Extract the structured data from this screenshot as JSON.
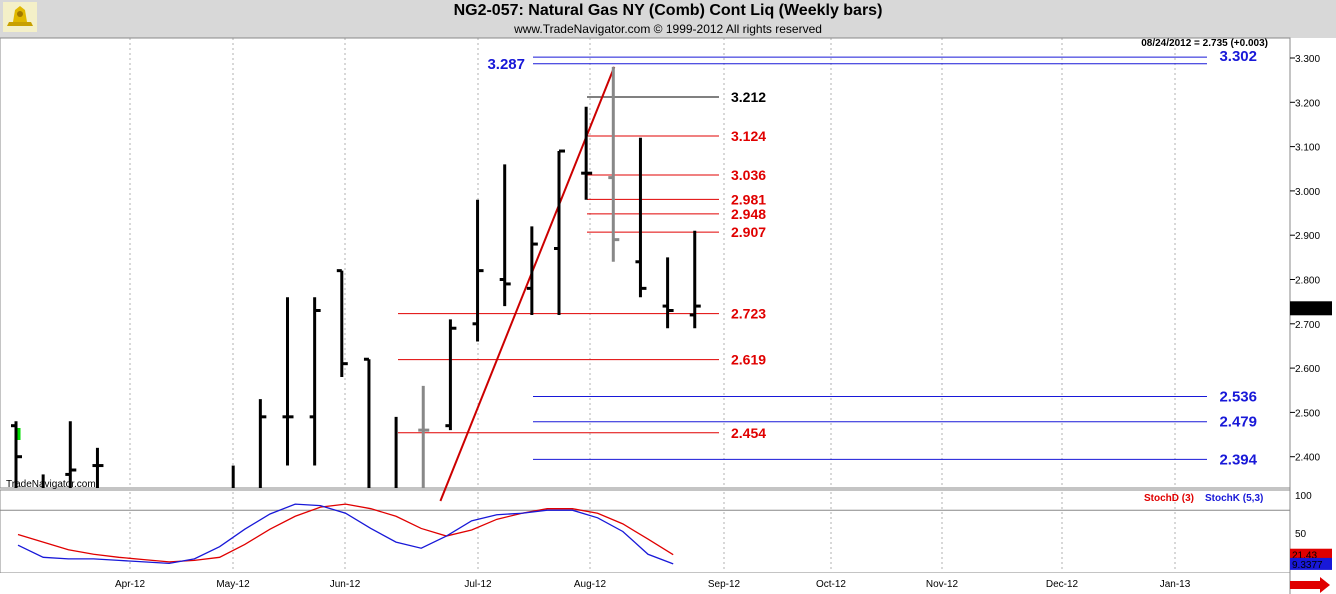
{
  "header": {
    "title": "NG2-057:  Natural Gas NY (Comb) Cont Liq  (Weekly bars)",
    "copyright": "www.TradeNavigator.com © 1999-2012 All rights reserved",
    "last_quote": "08/24/2012 = 2.735 (+0.003)",
    "watermark": "TradeNavigator.com",
    "logo_icon": "trade-navigator-logo-icon"
  },
  "chart_data": [
    {
      "type": "ohlc",
      "title": "NG2-057:  Natural Gas NY (Comb) Cont Liq  (Weekly bars)",
      "x_ticks": [
        "Apr-12",
        "May-12",
        "Jun-12",
        "Jul-12",
        "Aug-12",
        "Sep-12",
        "Oct-12",
        "Nov-12",
        "Dec-12",
        "Jan-13"
      ],
      "ylim": [
        2.3,
        3.32
      ],
      "y_ticks": [
        "3.300",
        "3.200",
        "3.100",
        "3.000",
        "2.900",
        "2.800",
        "2.700",
        "2.600",
        "2.500",
        "2.400"
      ],
      "last_price": "2.735",
      "bars": [
        {
          "week": 1,
          "open": 2.47,
          "high": 2.48,
          "low": 2.3,
          "close": 2.4,
          "color": "#000000"
        },
        {
          "week": 2,
          "open": 2.3,
          "high": 2.36,
          "low": 2.3,
          "close": 2.32,
          "color": "#000000"
        },
        {
          "week": 3,
          "open": 2.36,
          "high": 2.48,
          "low": 2.3,
          "close": 2.37,
          "color": "#000000"
        },
        {
          "week": 4,
          "open": 2.38,
          "high": 2.42,
          "low": 2.3,
          "close": 2.38,
          "color": "#000000"
        },
        {
          "week": 9,
          "open": 2.3,
          "high": 2.38,
          "low": 2.3,
          "close": 2.3,
          "color": "#000000"
        },
        {
          "week": 10,
          "open": 2.3,
          "high": 2.53,
          "low": 2.3,
          "close": 2.49,
          "color": "#000000"
        },
        {
          "week": 11,
          "open": 2.49,
          "high": 2.76,
          "low": 2.38,
          "close": 2.49,
          "color": "#000000"
        },
        {
          "week": 12,
          "open": 2.49,
          "high": 2.76,
          "low": 2.38,
          "close": 2.73,
          "color": "#000000"
        },
        {
          "week": 13,
          "open": 2.82,
          "high": 2.82,
          "low": 2.58,
          "close": 2.61,
          "color": "#000000"
        },
        {
          "week": 14,
          "open": 2.62,
          "high": 2.62,
          "low": 2.3,
          "close": 2.3,
          "color": "#000000"
        },
        {
          "week": 15,
          "open": 2.3,
          "high": 2.49,
          "low": 2.3,
          "close": 2.31,
          "color": "#000000"
        },
        {
          "week": 16,
          "open": 2.46,
          "high": 2.56,
          "low": 2.3,
          "close": 2.46,
          "color": "#888888"
        },
        {
          "week": 17,
          "open": 2.47,
          "high": 2.71,
          "low": 2.46,
          "close": 2.69,
          "color": "#000000"
        },
        {
          "week": 18,
          "open": 2.7,
          "high": 2.98,
          "low": 2.66,
          "close": 2.82,
          "color": "#000000"
        },
        {
          "week": 19,
          "open": 2.8,
          "high": 3.06,
          "low": 2.74,
          "close": 2.79,
          "color": "#000000"
        },
        {
          "week": 20,
          "open": 2.78,
          "high": 2.92,
          "low": 2.72,
          "close": 2.88,
          "color": "#000000"
        },
        {
          "week": 21,
          "open": 2.87,
          "high": 3.09,
          "low": 2.72,
          "close": 3.09,
          "color": "#000000"
        },
        {
          "week": 22,
          "open": 3.04,
          "high": 3.19,
          "low": 2.98,
          "close": 3.04,
          "color": "#000000"
        },
        {
          "week": 23,
          "open": 3.03,
          "high": 3.28,
          "low": 2.84,
          "close": 2.89,
          "color": "#888888"
        },
        {
          "week": 24,
          "open": 2.84,
          "high": 3.12,
          "low": 2.76,
          "close": 2.78,
          "color": "#000000"
        },
        {
          "week": 25,
          "open": 2.74,
          "high": 2.85,
          "low": 2.69,
          "close": 2.73,
          "color": "#000000"
        },
        {
          "week": 26,
          "open": 2.72,
          "high": 2.91,
          "low": 2.69,
          "close": 2.74,
          "color": "#000000"
        }
      ],
      "level_lines": [
        {
          "value": 3.302,
          "label": "3.302",
          "color": "#1818d8",
          "span": "right"
        },
        {
          "value": 3.287,
          "label": "3.287",
          "color": "#1818d8",
          "span": "right-label-left"
        },
        {
          "value": 3.212,
          "label": "3.212",
          "color": "#000000",
          "span": "short"
        },
        {
          "value": 3.124,
          "label": "3.124",
          "color": "#e00000",
          "span": "short"
        },
        {
          "value": 3.036,
          "label": "3.036",
          "color": "#e00000",
          "span": "short"
        },
        {
          "value": 2.981,
          "label": "2.981",
          "color": "#e00000",
          "span": "short"
        },
        {
          "value": 2.948,
          "label": "2.948",
          "color": "#e00000",
          "span": "short"
        },
        {
          "value": 2.907,
          "label": "2.907",
          "color": "#e00000",
          "span": "short"
        },
        {
          "value": 2.723,
          "label": "2.723",
          "color": "#e00000",
          "span": "wide"
        },
        {
          "value": 2.619,
          "label": "2.619",
          "color": "#e00000",
          "span": "wide"
        },
        {
          "value": 2.536,
          "label": "2.536",
          "color": "#1818d8",
          "span": "right"
        },
        {
          "value": 2.479,
          "label": "2.479",
          "color": "#1818d8",
          "span": "right"
        },
        {
          "value": 2.454,
          "label": "2.454",
          "color": "#e00000",
          "span": "wide"
        },
        {
          "value": 2.394,
          "label": "2.394",
          "color": "#1818d8",
          "span": "right"
        }
      ],
      "trendline": {
        "from": {
          "week": 17,
          "value": 2.3
        },
        "to": {
          "week": 23,
          "value": 3.28
        },
        "color": "#cc0000"
      }
    },
    {
      "type": "line",
      "title": "",
      "ylim": [
        0,
        110
      ],
      "y_ticks": [
        "100",
        "50"
      ],
      "reference_line": 80,
      "series": [
        {
          "name": "StochD (3)",
          "color": "#e00000",
          "last_label": "21.43",
          "values": [
            48,
            38,
            28,
            22,
            18,
            15,
            12,
            14,
            18,
            35,
            55,
            72,
            84,
            88,
            82,
            72,
            56,
            46,
            54,
            68,
            76,
            82,
            82,
            76,
            62,
            42,
            21.43
          ]
        },
        {
          "name": "StochK (5,3)",
          "color": "#1818d8",
          "last_label": "9.3377",
          "values": [
            34,
            18,
            16,
            16,
            14,
            12,
            10,
            16,
            32,
            55,
            75,
            88,
            86,
            76,
            56,
            38,
            30,
            46,
            66,
            74,
            76,
            80,
            80,
            70,
            52,
            22,
            9.3377
          ]
        }
      ]
    }
  ]
}
